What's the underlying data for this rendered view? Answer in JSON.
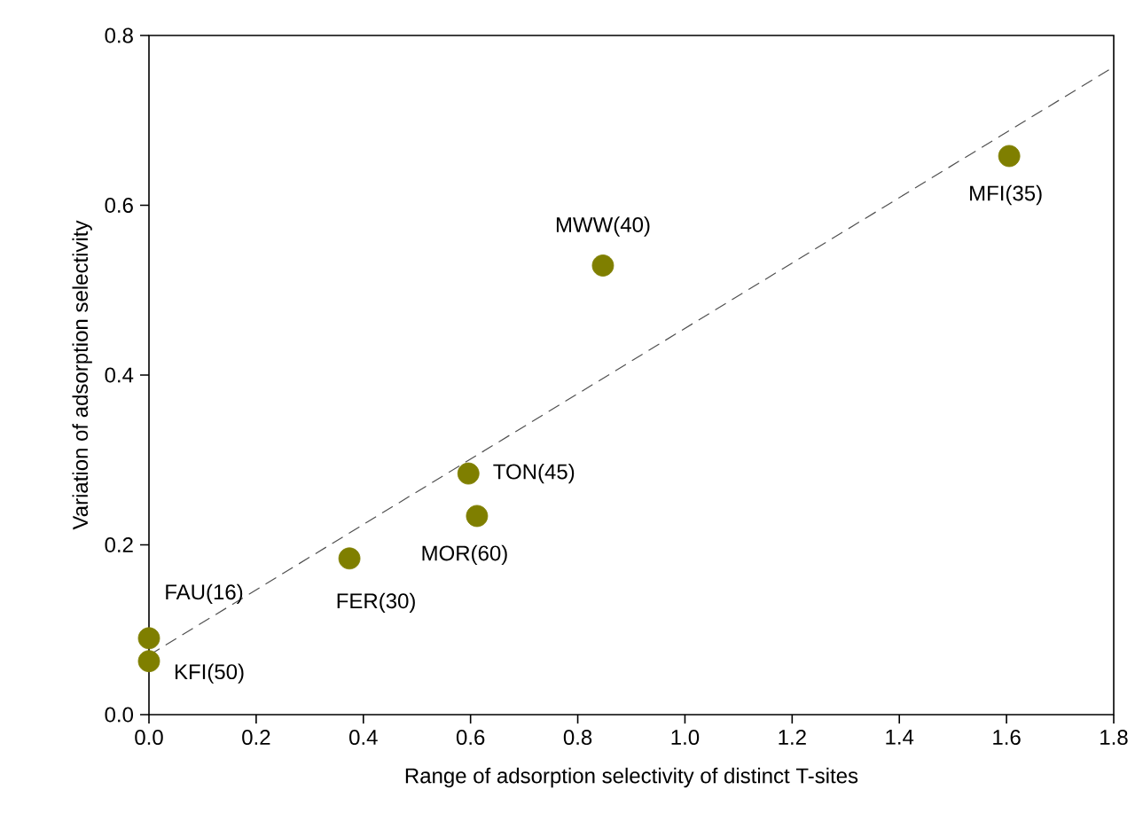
{
  "chart_data": {
    "type": "scatter",
    "xlabel": "Range of adsorption selectivity of distinct T-sites",
    "ylabel": "Variation of adsorption selectivity",
    "xlim": [
      0,
      1.8
    ],
    "ylim": [
      0,
      0.8
    ],
    "xticks": [
      {
        "value": 0,
        "label": "0.0"
      },
      0.2,
      0.4,
      0.6,
      0.8,
      {
        "value": 1,
        "label": "1.0"
      },
      1.2,
      1.4,
      1.6,
      1.8
    ],
    "yticks": [
      {
        "value": 0,
        "label": "0.0"
      },
      0.2,
      0.4,
      0.6,
      0.8
    ],
    "grid": false,
    "marker": "circle",
    "series": [
      {
        "color": "#7f7f00",
        "x": [
          0,
          0,
          0.374,
          0.596,
          0.612,
          0.847,
          1.605
        ],
        "values": [
          0.09,
          0.063,
          0.184,
          0.284,
          0.234,
          0.529,
          0.658
        ]
      },
      {
        "type": "line",
        "color": "#505050",
        "line_style": "dashed",
        "marker": "none",
        "x": [
          0,
          1.8
        ],
        "values": [
          0.07,
          0.763
        ]
      }
    ],
    "annotations": [
      {
        "text": "FAU(16)",
        "x": 0,
        "y": 0.09
      },
      {
        "text": "KFI(50)",
        "x": 0,
        "y": 0.063
      },
      {
        "text": "FER(30)",
        "x": 0.374,
        "y": 0.184
      },
      {
        "text": "TON(45)",
        "x": 0.596,
        "y": 0.284
      },
      {
        "text": "MOR(60)",
        "x": 0.612,
        "y": 0.234
      },
      {
        "text": "MWW(40)",
        "x": 0.847,
        "y": 0.529
      },
      {
        "text": "MFI(35)",
        "x": 1.605,
        "y": 0.658
      }
    ]
  }
}
